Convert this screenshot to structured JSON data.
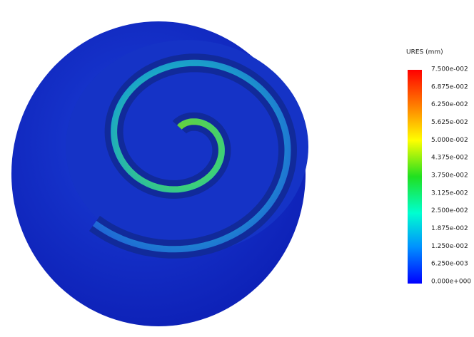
{
  "legend": {
    "title": "URES (mm)",
    "labels": [
      "7.500e-002",
      "6.875e-002",
      "6.250e-002",
      "5.625e-002",
      "5.000e-002",
      "4.375e-002",
      "3.750e-002",
      "3.125e-002",
      "2.500e-002",
      "1.875e-002",
      "1.250e-002",
      "6.250e-003",
      "0.000e+000"
    ]
  }
}
